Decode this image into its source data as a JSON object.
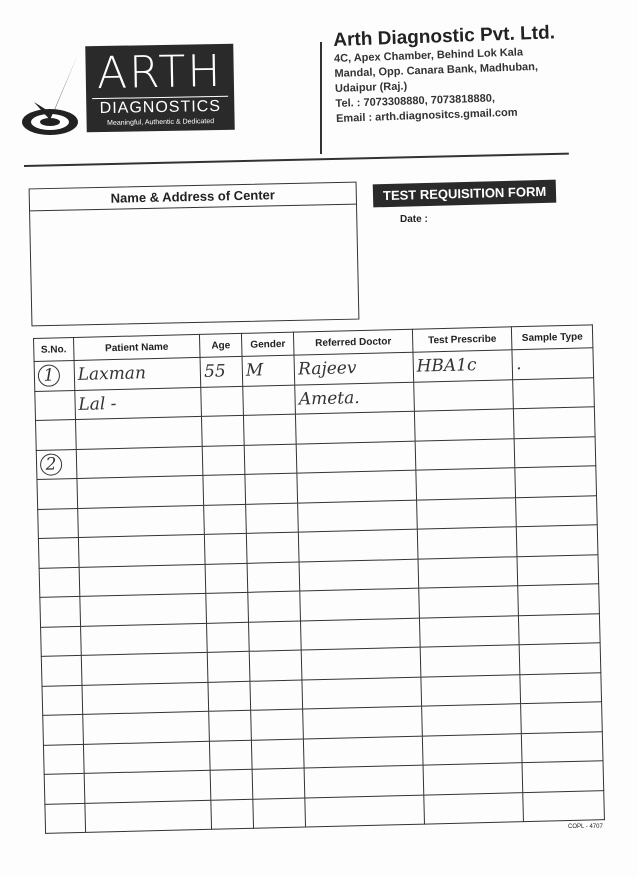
{
  "logo": {
    "name": "ARTH",
    "sub": "DIAGNOSTICS",
    "tagline": "Meaningful, Authentic & Dedicated"
  },
  "company": {
    "name": "Arth Diagnostic Pvt. Ltd.",
    "address": [
      "4C, Apex Chamber, Behind Lok Kala",
      "Mandal, Opp. Canara Bank, Madhuban,",
      "Udaipur (Raj.)"
    ],
    "tel": "Tel. : 7073308880, 7073818880,",
    "email": "Email : arth.diagnositcs.gmail.com"
  },
  "center_box_title": "Name & Address of Center",
  "form_title": "TEST REQUISITION FORM",
  "date_label": "Date :",
  "table": {
    "headers": [
      "S.No.",
      "Patient Name",
      "Age",
      "Gender",
      "Referred Doctor",
      "Test Prescribe",
      "Sample Type"
    ],
    "rows": [
      [
        "1",
        "Laxman",
        "55",
        "M",
        "Rajeev",
        "HBA1c",
        "."
      ],
      [
        "",
        "Lal -",
        "",
        "",
        "Ameta.",
        "",
        ""
      ],
      [
        "",
        "",
        "",
        "",
        "",
        "",
        ""
      ],
      [
        "2",
        "",
        "",
        "",
        "",
        "",
        ""
      ],
      [
        "",
        "",
        "",
        "",
        "",
        "",
        ""
      ],
      [
        "",
        "",
        "",
        "",
        "",
        "",
        ""
      ],
      [
        "",
        "",
        "",
        "",
        "",
        "",
        ""
      ],
      [
        "",
        "",
        "",
        "",
        "",
        "",
        ""
      ],
      [
        "",
        "",
        "",
        "",
        "",
        "",
        ""
      ],
      [
        "",
        "",
        "",
        "",
        "",
        "",
        ""
      ],
      [
        "",
        "",
        "",
        "",
        "",
        "",
        ""
      ],
      [
        "",
        "",
        "",
        "",
        "",
        "",
        ""
      ],
      [
        "",
        "",
        "",
        "",
        "",
        "",
        ""
      ],
      [
        "",
        "",
        "",
        "",
        "",
        "",
        ""
      ],
      [
        "",
        "",
        "",
        "",
        "",
        "",
        ""
      ],
      [
        "",
        "",
        "",
        "",
        "",
        "",
        ""
      ]
    ]
  },
  "form_code": "COPL - 4707"
}
